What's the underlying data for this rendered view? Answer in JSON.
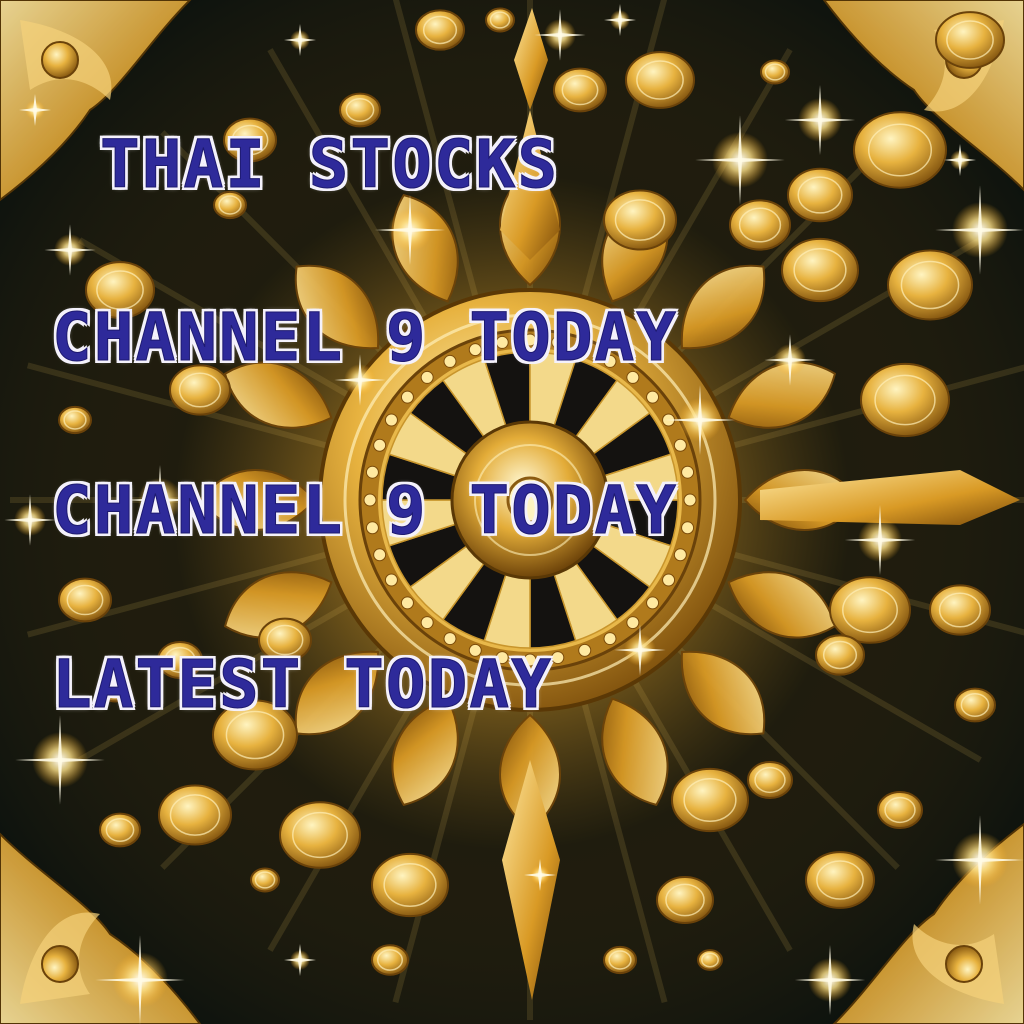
{
  "image": {
    "description_free": true,
    "palette": {
      "background": "#0f1410",
      "gold_light": "#ffe9a0",
      "gold": "#e0a830",
      "gold_dark": "#8a5a10",
      "text_fill": "#2e2a9a",
      "text_outline": "#f4f1fb"
    }
  },
  "headlines": {
    "line_1": "THAI STOCKS",
    "line_2": "CHANNEL 9 TODAY",
    "line_3": "CHANNEL 9 TODAY",
    "line_4": "LATEST TODAY"
  }
}
